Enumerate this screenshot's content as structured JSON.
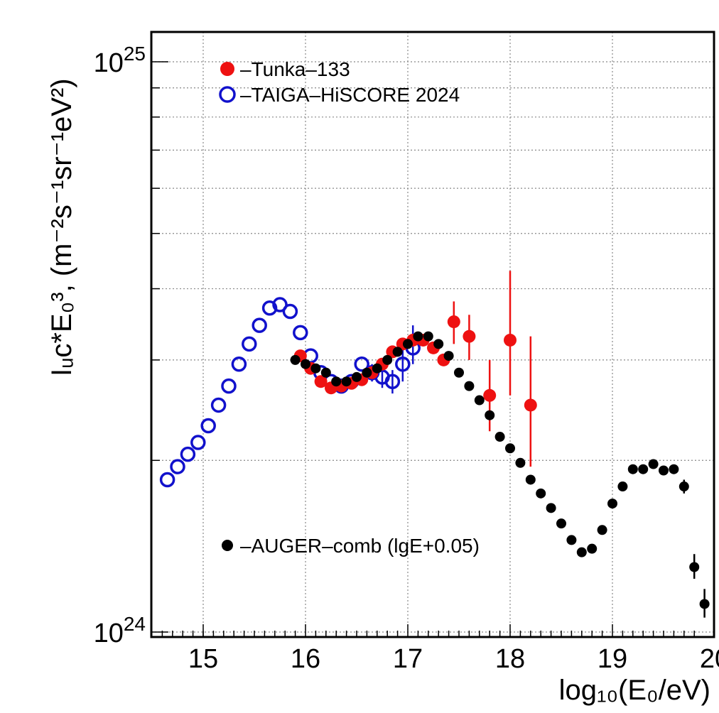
{
  "chart_data": {
    "type": "scatter",
    "title": "",
    "xlabel": "log₁₀(E₀/eV)",
    "ylabel": "Iᵤc*E₀³, (m⁻²s⁻¹sr⁻¹eV²)",
    "xlim": [
      14.5,
      20.0
    ],
    "ylim": [
      1e+24,
      1e+25
    ],
    "yscale": "log",
    "grid": true,
    "legend_position": "top-left",
    "x_ticks": [
      "15",
      "16",
      "17",
      "18",
      "19",
      "20"
    ],
    "y_ticks": [
      {
        "value": 1e+24,
        "base": "10",
        "exp": "24"
      },
      {
        "value": 1e+25,
        "base": "10",
        "exp": "25"
      }
    ],
    "series": [
      {
        "name": "–Tunka–133",
        "marker": "filled-circle",
        "color": "#ee1111",
        "points": [
          {
            "x": 15.95,
            "y": 3.05e+24
          },
          {
            "x": 16.05,
            "y": 2.9e+24
          },
          {
            "x": 16.15,
            "y": 2.75e+24
          },
          {
            "x": 16.25,
            "y": 2.68e+24
          },
          {
            "x": 16.35,
            "y": 2.7e+24
          },
          {
            "x": 16.45,
            "y": 2.73e+24
          },
          {
            "x": 16.55,
            "y": 2.77e+24
          },
          {
            "x": 16.65,
            "y": 2.85e+24
          },
          {
            "x": 16.75,
            "y": 2.95e+24
          },
          {
            "x": 16.85,
            "y": 3.1e+24
          },
          {
            "x": 16.95,
            "y": 3.2e+24
          },
          {
            "x": 17.05,
            "y": 3.25e+24
          },
          {
            "x": 17.15,
            "y": 3.25e+24
          },
          {
            "x": 17.25,
            "y": 3.15e+24
          },
          {
            "x": 17.35,
            "y": 3e+24
          },
          {
            "x": 17.45,
            "y": 3.5e+24,
            "err": [
              3.2e+24,
              3.8e+24
            ]
          },
          {
            "x": 17.6,
            "y": 3.3e+24,
            "err": [
              3e+24,
              3.6e+24
            ]
          },
          {
            "x": 17.8,
            "y": 2.6e+24,
            "err": [
              2.25e+24,
              3e+24
            ]
          },
          {
            "x": 18.0,
            "y": 3.25e+24,
            "err": [
              2.6e+24,
              4.3e+24
            ]
          },
          {
            "x": 18.2,
            "y": 2.5e+24,
            "err": [
              1.95e+24,
              3.3e+24
            ]
          }
        ]
      },
      {
        "name": "–TAIGA–HiSCORE 2024",
        "marker": "open-circle",
        "color": "#1111cc",
        "points": [
          {
            "x": 14.65,
            "y": 1.85e+24
          },
          {
            "x": 14.75,
            "y": 1.95e+24
          },
          {
            "x": 14.85,
            "y": 2.05e+24
          },
          {
            "x": 14.95,
            "y": 2.15e+24
          },
          {
            "x": 15.05,
            "y": 2.3e+24
          },
          {
            "x": 15.15,
            "y": 2.5e+24
          },
          {
            "x": 15.25,
            "y": 2.7e+24
          },
          {
            "x": 15.35,
            "y": 2.95e+24
          },
          {
            "x": 15.45,
            "y": 3.2e+24
          },
          {
            "x": 15.55,
            "y": 3.45e+24
          },
          {
            "x": 15.65,
            "y": 3.7e+24
          },
          {
            "x": 15.75,
            "y": 3.75e+24
          },
          {
            "x": 15.85,
            "y": 3.65e+24
          },
          {
            "x": 15.95,
            "y": 3.35e+24
          },
          {
            "x": 16.05,
            "y": 3.05e+24
          },
          {
            "x": 16.15,
            "y": 2.85e+24
          },
          {
            "x": 16.25,
            "y": 2.75e+24
          },
          {
            "x": 16.35,
            "y": 2.7e+24
          },
          {
            "x": 16.45,
            "y": 2.75e+24
          },
          {
            "x": 16.55,
            "y": 2.95e+24
          },
          {
            "x": 16.65,
            "y": 2.85e+24,
            "err": [
              2.75e+24,
              2.95e+24
            ]
          },
          {
            "x": 16.75,
            "y": 2.8e+24,
            "err": [
              2.68e+24,
              2.92e+24
            ]
          },
          {
            "x": 16.85,
            "y": 2.75e+24,
            "err": [
              2.62e+24,
              2.88e+24
            ]
          },
          {
            "x": 16.95,
            "y": 2.95e+24,
            "err": [
              2.75e+24,
              3.15e+24
            ]
          },
          {
            "x": 17.05,
            "y": 3.15e+24,
            "err": [
              2.95e+24,
              3.45e+24
            ]
          }
        ]
      },
      {
        "name": "–AUGER–comb (lgE+0.05)",
        "marker": "small-filled-circle",
        "color": "#000000",
        "points": [
          {
            "x": 15.9,
            "y": 3e+24
          },
          {
            "x": 16.0,
            "y": 2.95e+24
          },
          {
            "x": 16.1,
            "y": 2.9e+24
          },
          {
            "x": 16.2,
            "y": 2.85e+24
          },
          {
            "x": 16.3,
            "y": 2.75e+24
          },
          {
            "x": 16.4,
            "y": 2.75e+24
          },
          {
            "x": 16.5,
            "y": 2.8e+24
          },
          {
            "x": 16.6,
            "y": 2.85e+24
          },
          {
            "x": 16.7,
            "y": 2.9e+24
          },
          {
            "x": 16.8,
            "y": 3e+24
          },
          {
            "x": 16.9,
            "y": 3.1e+24
          },
          {
            "x": 17.0,
            "y": 3.2e+24
          },
          {
            "x": 17.1,
            "y": 3.3e+24
          },
          {
            "x": 17.2,
            "y": 3.3e+24
          },
          {
            "x": 17.3,
            "y": 3.2e+24
          },
          {
            "x": 17.4,
            "y": 3.05e+24
          },
          {
            "x": 17.5,
            "y": 2.85e+24
          },
          {
            "x": 17.6,
            "y": 2.7e+24
          },
          {
            "x": 17.7,
            "y": 2.55e+24
          },
          {
            "x": 17.8,
            "y": 2.4e+24
          },
          {
            "x": 17.9,
            "y": 2.2e+24
          },
          {
            "x": 18.0,
            "y": 2.1e+24
          },
          {
            "x": 18.1,
            "y": 1.98e+24
          },
          {
            "x": 18.2,
            "y": 1.85e+24
          },
          {
            "x": 18.3,
            "y": 1.75e+24
          },
          {
            "x": 18.4,
            "y": 1.65e+24
          },
          {
            "x": 18.5,
            "y": 1.55e+24
          },
          {
            "x": 18.6,
            "y": 1.45e+24
          },
          {
            "x": 18.7,
            "y": 1.38e+24
          },
          {
            "x": 18.8,
            "y": 1.4e+24
          },
          {
            "x": 18.9,
            "y": 1.51e+24
          },
          {
            "x": 19.0,
            "y": 1.68e+24
          },
          {
            "x": 19.1,
            "y": 1.8e+24
          },
          {
            "x": 19.2,
            "y": 1.93e+24
          },
          {
            "x": 19.3,
            "y": 1.93e+24
          },
          {
            "x": 19.4,
            "y": 1.97e+24
          },
          {
            "x": 19.5,
            "y": 1.92e+24
          },
          {
            "x": 19.6,
            "y": 1.93e+24
          },
          {
            "x": 19.7,
            "y": 1.8e+24,
            "err": [
              1.75e+24,
              1.85e+24
            ]
          },
          {
            "x": 19.8,
            "y": 1.3e+24,
            "err": [
              1.24e+24,
              1.37e+24
            ]
          },
          {
            "x": 19.9,
            "y": 1.12e+24,
            "err": [
              1.06e+24,
              1.19e+24
            ]
          }
        ]
      }
    ]
  }
}
